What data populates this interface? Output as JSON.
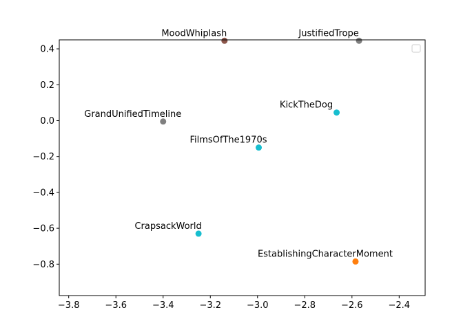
{
  "chart_data": {
    "type": "scatter",
    "title": "",
    "xlabel": "",
    "ylabel": "",
    "xlim": [
      -3.84,
      -2.29
    ],
    "ylim": [
      -0.975,
      0.45
    ],
    "grid": false,
    "legend": "top-right",
    "x_ticks": [
      -3.8,
      -3.6,
      -3.4,
      -3.2,
      -3.0,
      -2.8,
      -2.6,
      -2.4
    ],
    "x_tick_labels": [
      "−3.8",
      "−3.6",
      "−3.4",
      "−3.2",
      "−3.0",
      "−2.8",
      "−2.6",
      "−2.4"
    ],
    "y_ticks": [
      0.4,
      0.2,
      0.0,
      -0.2,
      -0.4,
      -0.6,
      -0.8
    ],
    "y_tick_labels": [
      "0.4",
      "0.2",
      "0.0",
      "−0.2",
      "−0.4",
      "−0.6",
      "−0.8"
    ],
    "points": [
      {
        "label": "MoodWhiplash",
        "x": -3.14,
        "y": 0.445,
        "color": "#8c564b"
      },
      {
        "label": "JustifiedTrope",
        "x": -2.57,
        "y": 0.445,
        "color": "#7f7f7f"
      },
      {
        "label": "GrandUnifiedTimeline",
        "x": -3.4,
        "y": -0.005,
        "color": "#7f7f7f"
      },
      {
        "label": "KickTheDog",
        "x": -2.665,
        "y": 0.045,
        "color": "#17becf"
      },
      {
        "label": "FilmsOfThe1970s",
        "x": -2.995,
        "y": -0.15,
        "color": "#17becf"
      },
      {
        "label": "CrapsackWorld",
        "x": -3.25,
        "y": -0.63,
        "color": "#17becf"
      },
      {
        "label": "EstablishingCharacterMoment",
        "x": -2.585,
        "y": -0.785,
        "color": "#ff7f0e"
      }
    ]
  }
}
